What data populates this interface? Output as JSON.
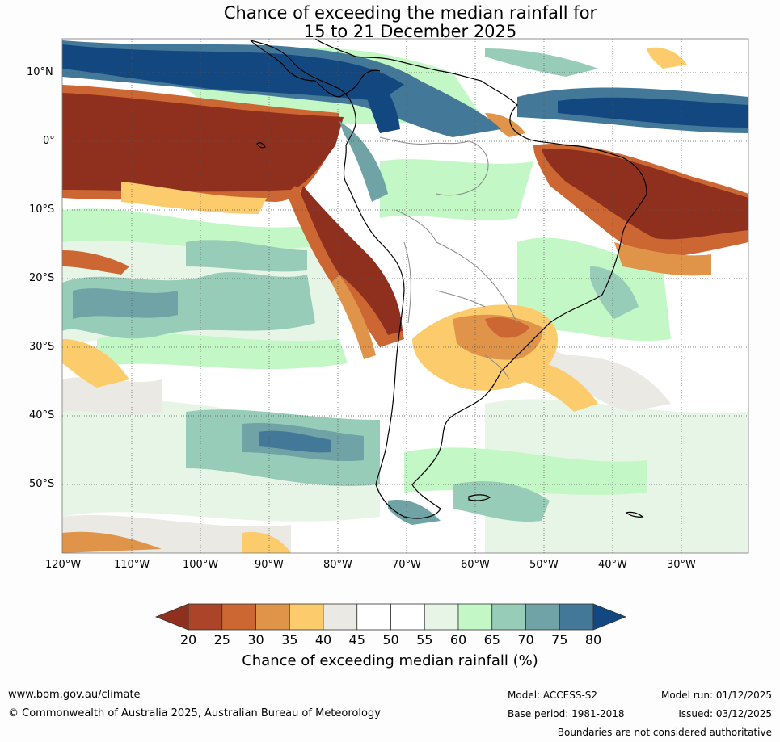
{
  "title": {
    "line1": "Chance of exceeding the median rainfall for",
    "line2": "15 to 21 December 2025"
  },
  "axes": {
    "lat_labels": [
      "10°N",
      "0°",
      "10°S",
      "20°S",
      "30°S",
      "40°S",
      "50°S"
    ],
    "lon_labels": [
      "120°W",
      "110°W",
      "100°W",
      "90°W",
      "80°W",
      "70°W",
      "60°W",
      "50°W",
      "40°W",
      "30°W"
    ]
  },
  "colorbar": {
    "ticks": [
      "20",
      "25",
      "30",
      "35",
      "40",
      "45",
      "50",
      "55",
      "60",
      "65",
      "70",
      "75",
      "80"
    ],
    "colors": [
      "#8f2f1d",
      "#ab4428",
      "#cc6632",
      "#e0944a",
      "#fbcb6c",
      "#ebe9e4",
      "#ffffff",
      "#ffffff",
      "#e7f5e6",
      "#c4f7c6",
      "#97cdb8",
      "#6fa3a5",
      "#447898",
      "#134780"
    ],
    "label": "Chance of exceeding median rainfall (%)"
  },
  "footer": {
    "url": "www.bom.gov.au/climate",
    "copyright": "© Commonwealth of Australia 2025, Australian Bureau of Meteorology",
    "model": "Model: ACCESS-S2",
    "base_period": "Base period: 1981-2018",
    "model_run": "Model run: 01/12/2025",
    "issued": "Issued: 03/12/2025",
    "disclaimer": "Boundaries are not considered authoritative"
  }
}
